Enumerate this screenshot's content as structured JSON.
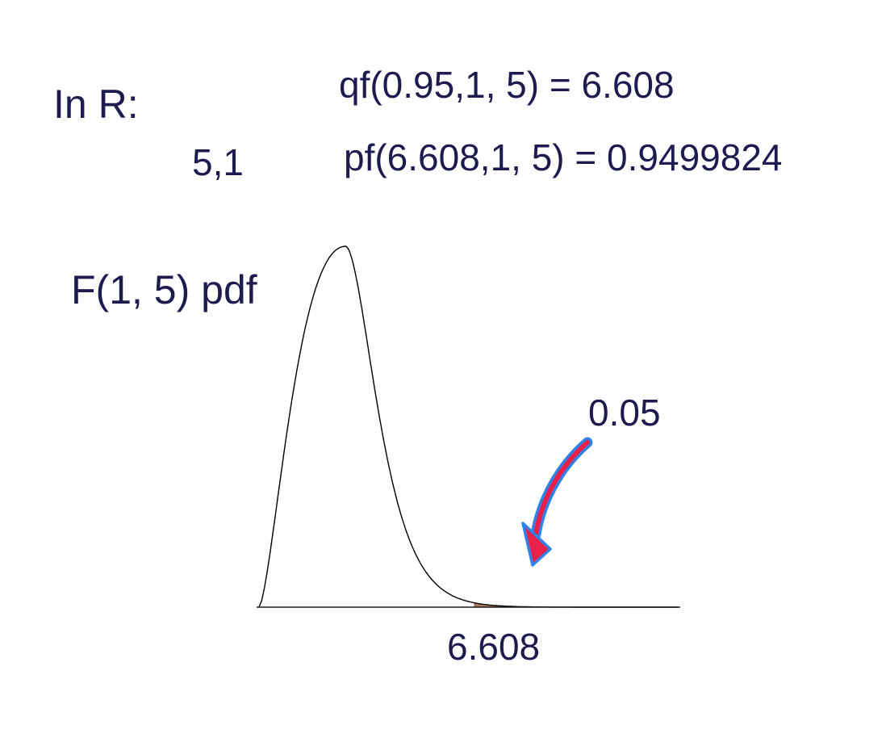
{
  "heading": {
    "prefix": "In R:",
    "side_note": "5,1"
  },
  "commands": {
    "qf": "qf(0.95,1, 5) = 6.608",
    "pf": "pf(6.608,1, 5) = 0.9499824"
  },
  "chart_data": {
    "type": "area",
    "distribution": "F",
    "df1": 1,
    "df2": 5,
    "title": "F(1, 5) pdf",
    "critical_value": 6.608,
    "critical_label": "6.608",
    "tail_probability": 0.05,
    "tail_label": "0.05",
    "cdf_at_critical": 0.9499824,
    "x_range": [
      0,
      13
    ]
  },
  "colors": {
    "text": "#1d1b4f",
    "curve": "#000000",
    "tail_fill": "#b07a5e",
    "arrow_fill": "#e8204a",
    "arrow_outline": "#2f82e6"
  },
  "icons": {
    "arrow": "curved-arrow-icon"
  }
}
